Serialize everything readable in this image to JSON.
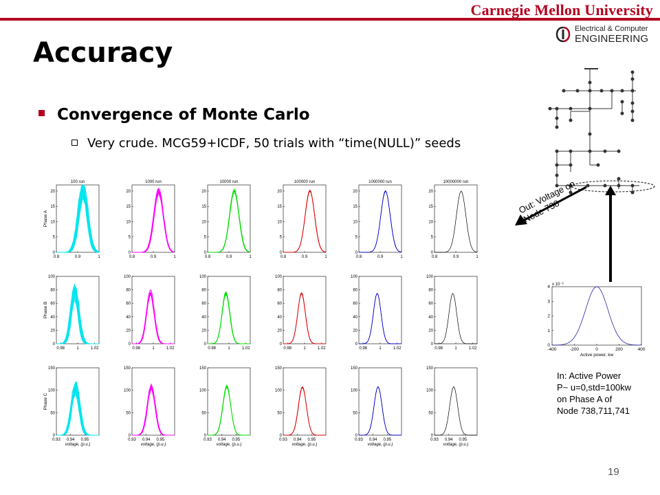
{
  "header": {
    "university": "Carnegie Mellon University",
    "dept_line1": "Electrical & Computer",
    "dept_line2": "ENGINEERING",
    "accent_color": "#b1001f"
  },
  "slide": {
    "title": "Accuracy",
    "bullet1": "Convergence of Monte Carlo",
    "bullet2": "Very crude. MCG59+ICDF, 50 trials with “time(NULL)” seeds",
    "page_number": "19"
  },
  "annotations": {
    "out_label": "Out: Voltage on Node 738",
    "in_label_lines": [
      "In: Active Power",
      "P~ u=0,std=100kw",
      "on Phase A of",
      "Node 738,711,741"
    ]
  },
  "chart_data": [
    {
      "type": "line",
      "description_grid": "3 rows (phases) x 6 columns (sample sizes), each a family of 50 histogram-like curves",
      "column_titles": [
        "100 run",
        "1000 run",
        "10000 run",
        "100000 run",
        "1000000 run",
        "10000000 run"
      ],
      "series_colors": [
        "#00e5ee",
        "#ff00ff",
        "#00dd00",
        "#dd0000",
        "#0000cc",
        "#000000"
      ],
      "rows": [
        {
          "ylabel": "Phase A",
          "yticks": [
            "0",
            "5",
            "10",
            "15",
            "20"
          ],
          "ylim": [
            0,
            22
          ],
          "xticks": [
            "0.8",
            "0.9",
            "1"
          ],
          "xlim": [
            0.8,
            1.0
          ],
          "peak_x": 0.925,
          "peak_y": 20,
          "spread": 0.022
        },
        {
          "ylabel": "Phase B",
          "yticks": [
            "0",
            "20",
            "40",
            "60",
            "80",
            "100"
          ],
          "ylim": [
            0,
            100
          ],
          "xticks": [
            "0.98",
            "1",
            "1.02"
          ],
          "xlim": [
            0.975,
            1.025
          ],
          "peak_x": 0.9965,
          "peak_y": 75,
          "spread": 0.0045
        },
        {
          "ylabel": "Phase C",
          "yticks": [
            "0",
            "50",
            "100",
            "150"
          ],
          "ylim": [
            0,
            150
          ],
          "xticks": [
            "0.93",
            "0.94",
            "0.95"
          ],
          "xlim": [
            0.93,
            0.96
          ],
          "peak_x": 0.9435,
          "peak_y": 108,
          "spread": 0.0028,
          "xlabel": "voltage, (p.u.)"
        }
      ]
    },
    {
      "type": "line",
      "title": "",
      "xlabel": "Active power, kw",
      "ylabel": "",
      "yscale_label": "x 10⁻³",
      "xticks": [
        "-400",
        "-200",
        "0",
        "200",
        "400"
      ],
      "yticks": [
        "0",
        "1",
        "2",
        "3",
        "4"
      ],
      "xlim": [
        -400,
        400
      ],
      "ylim": [
        0,
        4
      ],
      "series": [
        {
          "mean": 0,
          "std": 100,
          "peak": 4,
          "color": "#2222aa"
        }
      ]
    }
  ]
}
